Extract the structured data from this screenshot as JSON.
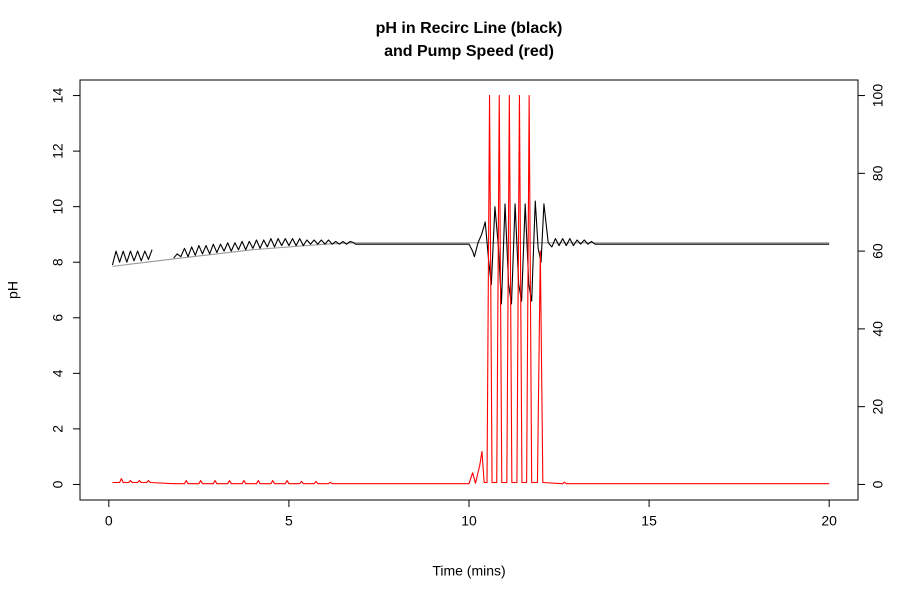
{
  "chart_data": {
    "type": "line",
    "title": [
      "pH in Recirc Line (black)",
      "and Pump Speed (red)"
    ],
    "x_label": "Time (mins)",
    "y_label": "pH",
    "xlim": [
      -0.8,
      20.8
    ],
    "ylim": [
      -0.56,
      14.56
    ],
    "y2lim": [
      -4,
      104
    ],
    "xticks": [
      0,
      5,
      10,
      15,
      20
    ],
    "yticks": [
      0,
      2,
      4,
      6,
      8,
      10,
      12,
      14
    ],
    "y2ticks": [
      0,
      20,
      40,
      60,
      80,
      100
    ],
    "series": [
      {
        "color": "#999999",
        "axis": "y",
        "x": [
          0.1,
          2,
          4,
          6,
          6.8,
          20
        ],
        "values": [
          7.85,
          8.15,
          8.45,
          8.65,
          8.7,
          8.7
        ]
      },
      {
        "color": "#000000",
        "axis": "y",
        "x": [
          0.1,
          0.2,
          0.3,
          0.4,
          0.5,
          0.6,
          0.7,
          0.8,
          0.9,
          1.0,
          1.1,
          1.2,
          1.5,
          1.8,
          1.9,
          2.0,
          2.1,
          2.2,
          2.3,
          2.4,
          2.5,
          2.6,
          2.7,
          2.8,
          2.9,
          3.0,
          3.1,
          3.2,
          3.3,
          3.4,
          3.5,
          3.6,
          3.7,
          3.8,
          3.9,
          4.0,
          4.1,
          4.2,
          4.3,
          4.4,
          4.5,
          4.6,
          4.7,
          4.8,
          4.9,
          5.0,
          5.1,
          5.2,
          5.3,
          5.4,
          5.5,
          5.6,
          5.7,
          5.8,
          5.9,
          6.0,
          6.1,
          6.2,
          6.3,
          6.4,
          6.5,
          6.6,
          6.7,
          6.8,
          6.85,
          10.0,
          10.1,
          10.15,
          10.25,
          10.35,
          10.45,
          10.55,
          10.62,
          10.72,
          10.82,
          10.9,
          11.0,
          11.1,
          11.18,
          11.28,
          11.38,
          11.46,
          11.56,
          11.66,
          11.74,
          11.84,
          11.92,
          12.0,
          12.08,
          12.2,
          12.3,
          12.4,
          12.5,
          12.6,
          12.7,
          12.8,
          12.9,
          13.0,
          13.1,
          13.2,
          13.3,
          13.4,
          13.5,
          20
        ],
        "values": [
          7.9,
          8.4,
          8.0,
          8.4,
          8.0,
          8.4,
          8.05,
          8.4,
          8.05,
          8.4,
          8.1,
          8.45,
          null,
          8.15,
          8.3,
          8.2,
          8.5,
          8.2,
          8.55,
          8.25,
          8.6,
          8.3,
          8.6,
          8.3,
          8.65,
          8.35,
          8.65,
          8.4,
          8.7,
          8.4,
          8.7,
          8.45,
          8.75,
          8.45,
          8.75,
          8.5,
          8.8,
          8.5,
          8.8,
          8.55,
          8.85,
          8.55,
          8.85,
          8.6,
          8.85,
          8.6,
          8.85,
          8.6,
          8.85,
          8.6,
          8.8,
          8.65,
          8.8,
          8.65,
          8.8,
          8.65,
          8.8,
          8.65,
          8.75,
          8.65,
          8.75,
          8.65,
          8.75,
          8.7,
          8.65,
          8.65,
          8.4,
          8.2,
          8.7,
          9.0,
          9.45,
          8.0,
          7.2,
          10.0,
          8.5,
          6.5,
          10.1,
          7.2,
          6.5,
          10.1,
          7.2,
          6.6,
          10.1,
          7.2,
          6.6,
          10.2,
          8.5,
          8.0,
          10.1,
          8.7,
          8.55,
          8.85,
          8.6,
          8.85,
          8.6,
          8.85,
          8.6,
          8.8,
          8.65,
          8.8,
          8.65,
          8.75,
          8.65,
          8.65
        ]
      },
      {
        "color": "#ff0000",
        "axis": "y2",
        "x": [
          0.1,
          0.3,
          0.35,
          0.4,
          0.55,
          0.6,
          0.65,
          0.8,
          0.85,
          0.9,
          1.05,
          1.1,
          1.15,
          1.8,
          2.1,
          2.15,
          2.2,
          2.5,
          2.55,
          2.6,
          2.9,
          2.95,
          3.0,
          3.3,
          3.35,
          3.4,
          3.7,
          3.75,
          3.8,
          4.1,
          4.15,
          4.2,
          4.5,
          4.55,
          4.6,
          4.9,
          4.95,
          5.0,
          5.3,
          5.35,
          5.4,
          5.7,
          5.75,
          5.8,
          6.1,
          6.15,
          6.2,
          6.8,
          10.0,
          10.1,
          10.18,
          10.3,
          10.36,
          10.42,
          10.5,
          10.57,
          10.64,
          10.77,
          10.84,
          10.91,
          11.05,
          11.12,
          11.19,
          11.33,
          11.4,
          11.47,
          11.6,
          11.67,
          11.74,
          11.9,
          11.98,
          12.05,
          12.6,
          12.65,
          12.7,
          13.5,
          20
        ],
        "values": [
          0.5,
          0.5,
          1.5,
          0.5,
          0.5,
          1,
          0.5,
          0.5,
          1,
          0.5,
          0.5,
          1,
          0.5,
          0.2,
          0.2,
          1,
          0.2,
          0.2,
          1,
          0.2,
          0.2,
          1,
          0.2,
          0.2,
          1,
          0.2,
          0.2,
          1,
          0.2,
          0.2,
          1,
          0.2,
          0.2,
          1,
          0.2,
          0.2,
          1,
          0.2,
          0.2,
          0.8,
          0.2,
          0.2,
          0.8,
          0.2,
          0.2,
          0.6,
          0.2,
          0.2,
          0.2,
          3,
          0.3,
          5,
          8.5,
          0.5,
          0.5,
          100,
          0.5,
          0.5,
          100,
          0.5,
          0.5,
          100,
          0.5,
          0.5,
          100,
          0.5,
          0.5,
          100,
          0.5,
          0.5,
          60,
          0.5,
          0.2,
          0.6,
          0.2,
          0.2,
          0.2
        ]
      }
    ]
  }
}
